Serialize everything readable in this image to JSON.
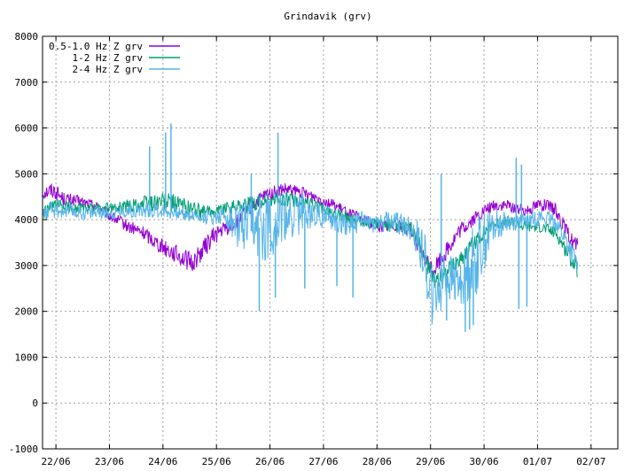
{
  "chart_data": {
    "type": "line",
    "title": "Grindavik (grv)",
    "xlabel": "",
    "ylabel": "",
    "ylim": [
      -1000,
      8000
    ],
    "yticks": [
      -1000,
      0,
      1000,
      2000,
      3000,
      4000,
      5000,
      6000,
      7000,
      8000
    ],
    "xlim": [
      0,
      10.75
    ],
    "xticks": [
      {
        "x": 0.25,
        "label": "22/06"
      },
      {
        "x": 1.25,
        "label": "23/06"
      },
      {
        "x": 2.25,
        "label": "24/06"
      },
      {
        "x": 3.25,
        "label": "25/06"
      },
      {
        "x": 4.25,
        "label": "26/06"
      },
      {
        "x": 5.25,
        "label": "27/06"
      },
      {
        "x": 6.25,
        "label": "28/06"
      },
      {
        "x": 7.25,
        "label": "29/06"
      },
      {
        "x": 8.25,
        "label": "30/06"
      },
      {
        "x": 9.25,
        "label": "01/07"
      },
      {
        "x": 10.25,
        "label": "02/07"
      }
    ],
    "grid": true,
    "legend_position": "top-left",
    "series": [
      {
        "name": "0.5-1.0 Hz Z grv",
        "color": "#9400d3",
        "x": [
          0.0,
          0.2,
          0.4,
          0.7,
          1.0,
          1.3,
          1.6,
          1.9,
          2.2,
          2.5,
          2.8,
          3.0,
          3.2,
          3.4,
          3.6,
          3.9,
          4.2,
          4.5,
          4.8,
          5.1,
          5.4,
          5.7,
          6.0,
          6.3,
          6.6,
          6.9,
          7.1,
          7.3,
          7.5,
          7.8,
          8.1,
          8.4,
          8.7,
          9.0,
          9.3,
          9.6,
          9.8,
          10.0
        ],
        "y": [
          4600,
          4650,
          4450,
          4400,
          4300,
          4050,
          3850,
          3700,
          3450,
          3250,
          3050,
          3350,
          3650,
          3800,
          3900,
          4300,
          4550,
          4650,
          4600,
          4500,
          4350,
          4150,
          4000,
          3850,
          3900,
          3750,
          3200,
          2900,
          3250,
          3750,
          4050,
          4300,
          4300,
          4200,
          4350,
          4200,
          3700,
          3400
        ],
        "spread": [
          180,
          180,
          150,
          120,
          120,
          130,
          140,
          160,
          180,
          200,
          220,
          220,
          200,
          180,
          160,
          160,
          150,
          150,
          140,
          130,
          120,
          120,
          120,
          130,
          140,
          150,
          180,
          200,
          200,
          180,
          150,
          130,
          130,
          130,
          140,
          150,
          180,
          200
        ]
      },
      {
        "name": "1-2 Hz Z grv",
        "color": "#009e73",
        "x": [
          0.0,
          0.2,
          0.4,
          0.7,
          1.0,
          1.3,
          1.6,
          1.9,
          2.2,
          2.5,
          2.8,
          3.0,
          3.2,
          3.4,
          3.6,
          3.9,
          4.2,
          4.5,
          4.8,
          5.1,
          5.4,
          5.7,
          6.0,
          6.3,
          6.6,
          6.9,
          7.1,
          7.3,
          7.5,
          7.8,
          8.1,
          8.4,
          8.7,
          9.0,
          9.3,
          9.6,
          9.8,
          10.0
        ],
        "y": [
          4100,
          4300,
          4300,
          4250,
          4250,
          4250,
          4300,
          4350,
          4400,
          4350,
          4250,
          4150,
          4200,
          4250,
          4300,
          4350,
          4400,
          4450,
          4400,
          4300,
          4150,
          4050,
          3950,
          3900,
          3850,
          3800,
          3300,
          2700,
          2800,
          3150,
          3550,
          3900,
          3950,
          3850,
          3850,
          3700,
          3300,
          2900
        ],
        "spread": [
          150,
          150,
          130,
          120,
          120,
          120,
          150,
          200,
          220,
          200,
          180,
          150,
          140,
          140,
          150,
          160,
          160,
          160,
          150,
          140,
          130,
          130,
          130,
          140,
          150,
          160,
          200,
          220,
          220,
          200,
          170,
          140,
          130,
          130,
          130,
          140,
          170,
          200
        ]
      },
      {
        "name": "2-4 Hz Z grv",
        "color": "#56b4e9",
        "x": [
          0.0,
          0.2,
          0.4,
          0.7,
          1.0,
          1.3,
          1.6,
          1.9,
          2.2,
          2.5,
          2.8,
          3.0,
          3.2,
          3.4,
          3.6,
          3.9,
          4.2,
          4.5,
          4.8,
          5.1,
          5.4,
          5.7,
          6.0,
          6.3,
          6.6,
          6.9,
          7.1,
          7.3,
          7.5,
          7.8,
          8.1,
          8.4,
          8.7,
          9.0,
          9.3,
          9.6,
          9.8,
          10.0
        ],
        "y": [
          4150,
          4200,
          4200,
          4150,
          4150,
          4150,
          4200,
          4200,
          4200,
          4150,
          4100,
          4050,
          4050,
          4100,
          3900,
          3750,
          3900,
          4000,
          4150,
          4150,
          4000,
          3900,
          3950,
          3950,
          3950,
          3800,
          3400,
          2200,
          2800,
          2600,
          3200,
          3850,
          3950,
          3950,
          4050,
          3950,
          3500,
          3000
        ],
        "spread": [
          200,
          180,
          160,
          150,
          140,
          140,
          150,
          160,
          160,
          150,
          150,
          150,
          160,
          180,
          500,
          700,
          800,
          600,
          500,
          300,
          250,
          250,
          250,
          250,
          250,
          300,
          600,
          700,
          600,
          500,
          900,
          400,
          200,
          180,
          180,
          200,
          250,
          250
        ],
        "spikes": [
          {
            "x": 2.0,
            "y": 5600
          },
          {
            "x": 2.4,
            "y": 6100
          },
          {
            "x": 2.3,
            "y": 5900
          },
          {
            "x": 3.9,
            "y": 5000
          },
          {
            "x": 4.4,
            "y": 5900
          },
          {
            "x": 4.05,
            "y": 2000
          },
          {
            "x": 4.35,
            "y": 2300
          },
          {
            "x": 4.9,
            "y": 2500
          },
          {
            "x": 5.5,
            "y": 2550
          },
          {
            "x": 5.8,
            "y": 2300
          },
          {
            "x": 7.45,
            "y": 5000
          },
          {
            "x": 7.55,
            "y": 1800
          },
          {
            "x": 7.9,
            "y": 1550
          },
          {
            "x": 7.98,
            "y": 1600
          },
          {
            "x": 8.05,
            "y": 1700
          },
          {
            "x": 8.85,
            "y": 5350
          },
          {
            "x": 8.95,
            "y": 5200
          },
          {
            "x": 8.9,
            "y": 2050
          },
          {
            "x": 9.05,
            "y": 2100
          }
        ]
      }
    ]
  }
}
